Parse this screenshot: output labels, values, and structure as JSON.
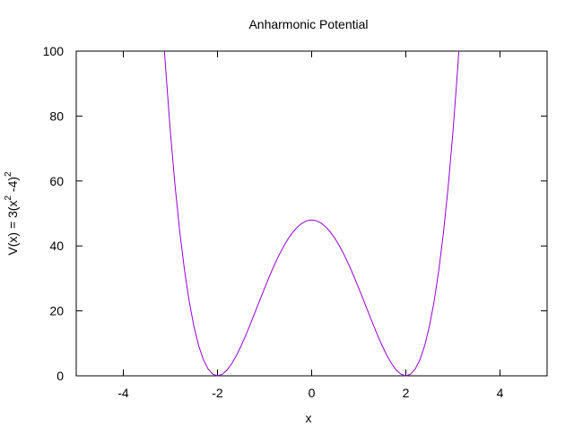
{
  "chart_data": {
    "type": "line",
    "title": "Anharmonic Potential",
    "xlabel": "x",
    "ylabel": {
      "base": "V(x) = 3(x",
      "sup1": "2",
      "mid": " -4)",
      "sup2": "2"
    },
    "xlim": [
      -5,
      5
    ],
    "ylim": [
      0,
      100
    ],
    "x_ticks": [
      -4,
      -2,
      0,
      2,
      4
    ],
    "y_ticks": [
      0,
      20,
      40,
      60,
      80,
      100
    ],
    "grid": false,
    "function": "3*(x^2-4)^2",
    "x_sample_range": [
      -5,
      5
    ],
    "sample_count": 101,
    "series": [
      {
        "line_color": "#9400d3"
      }
    ]
  }
}
